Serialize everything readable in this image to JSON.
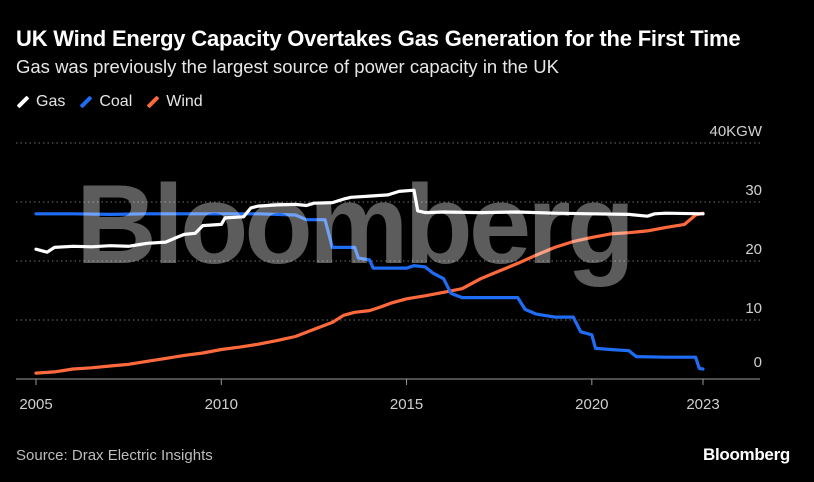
{
  "header": {
    "title": "UK Wind Energy Capacity Overtakes Gas Generation for the First Time",
    "subtitle": "Gas was previously the largest source of power capacity in the UK"
  },
  "footer": {
    "source": "Source: Drax Electric Insights",
    "brand": "Bloomberg"
  },
  "watermark": "Bloomberg",
  "chart_data": {
    "type": "line",
    "title": "UK Wind Energy Capacity Overtakes Gas Generation for the First Time",
    "subtitle": "Gas was previously the largest source of power capacity in the UK",
    "y_unit": "GW",
    "xlim": [
      2005,
      2023
    ],
    "ylim": [
      0,
      40
    ],
    "x_ticks": [
      {
        "value": 2005,
        "label": "2005"
      },
      {
        "value": 2010,
        "label": "2010"
      },
      {
        "value": 2015,
        "label": "2015"
      },
      {
        "value": 2020,
        "label": "2020"
      },
      {
        "value": 2023,
        "label": "2023"
      }
    ],
    "y_ticks": [
      {
        "value": 0,
        "label": "0"
      },
      {
        "value": 10,
        "label": "10"
      },
      {
        "value": 20,
        "label": "20"
      },
      {
        "value": 30,
        "label": "30"
      },
      {
        "value": 40,
        "label": "40KGW"
      }
    ],
    "grid": true,
    "legend_position": "top-left",
    "series": [
      {
        "name": "Gas",
        "color": "#ffffff",
        "points": [
          [
            2005.0,
            22.0
          ],
          [
            2005.3,
            21.5
          ],
          [
            2005.5,
            22.3
          ],
          [
            2006.0,
            22.5
          ],
          [
            2006.5,
            22.4
          ],
          [
            2007.0,
            22.6
          ],
          [
            2007.5,
            22.5
          ],
          [
            2007.8,
            22.8
          ],
          [
            2008.0,
            23.0
          ],
          [
            2008.5,
            23.2
          ],
          [
            2008.8,
            24.0
          ],
          [
            2009.0,
            24.5
          ],
          [
            2009.3,
            24.7
          ],
          [
            2009.5,
            26.0
          ],
          [
            2010.0,
            26.2
          ],
          [
            2010.1,
            27.3
          ],
          [
            2010.6,
            27.5
          ],
          [
            2010.8,
            29.0
          ],
          [
            2011.0,
            29.3
          ],
          [
            2011.5,
            29.5
          ],
          [
            2012.0,
            29.6
          ],
          [
            2012.3,
            29.4
          ],
          [
            2012.5,
            29.8
          ],
          [
            2013.0,
            29.9
          ],
          [
            2013.3,
            30.5
          ],
          [
            2013.5,
            30.8
          ],
          [
            2014.0,
            31.0
          ],
          [
            2014.5,
            31.2
          ],
          [
            2014.8,
            31.8
          ],
          [
            2015.2,
            32.0
          ],
          [
            2015.3,
            28.5
          ],
          [
            2015.5,
            28.2
          ],
          [
            2016.0,
            28.3
          ],
          [
            2017.0,
            28.2
          ],
          [
            2018.0,
            28.3
          ],
          [
            2019.0,
            28.1
          ],
          [
            2020.0,
            28.0
          ],
          [
            2021.0,
            27.9
          ],
          [
            2021.5,
            27.6
          ],
          [
            2021.7,
            28.0
          ],
          [
            2022.0,
            28.1
          ],
          [
            2023.0,
            28.0
          ]
        ]
      },
      {
        "name": "Coal",
        "color": "#1f6cf5",
        "points": [
          [
            2005.0,
            28.0
          ],
          [
            2006.0,
            28.0
          ],
          [
            2007.0,
            27.9
          ],
          [
            2008.0,
            28.0
          ],
          [
            2009.0,
            28.0
          ],
          [
            2010.0,
            28.0
          ],
          [
            2011.0,
            28.0
          ],
          [
            2012.0,
            27.8
          ],
          [
            2012.3,
            27.0
          ],
          [
            2012.8,
            27.0
          ],
          [
            2013.0,
            22.3
          ],
          [
            2013.6,
            22.3
          ],
          [
            2013.7,
            20.5
          ],
          [
            2014.0,
            20.2
          ],
          [
            2014.1,
            18.8
          ],
          [
            2015.0,
            18.8
          ],
          [
            2015.2,
            19.2
          ],
          [
            2015.5,
            19.0
          ],
          [
            2015.7,
            18.0
          ],
          [
            2016.0,
            17.0
          ],
          [
            2016.2,
            14.5
          ],
          [
            2016.5,
            13.8
          ],
          [
            2017.0,
            13.8
          ],
          [
            2018.0,
            13.8
          ],
          [
            2018.2,
            11.8
          ],
          [
            2018.5,
            11.0
          ],
          [
            2019.0,
            10.5
          ],
          [
            2019.5,
            10.5
          ],
          [
            2019.7,
            8.0
          ],
          [
            2020.0,
            7.5
          ],
          [
            2020.1,
            5.2
          ],
          [
            2020.5,
            5.0
          ],
          [
            2021.0,
            4.8
          ],
          [
            2021.2,
            3.8
          ],
          [
            2022.0,
            3.7
          ],
          [
            2022.8,
            3.7
          ],
          [
            2022.9,
            1.8
          ],
          [
            2023.0,
            1.7
          ]
        ]
      },
      {
        "name": "Wind",
        "color": "#ff6a3d",
        "points": [
          [
            2005.0,
            1.0
          ],
          [
            2005.5,
            1.2
          ],
          [
            2006.0,
            1.7
          ],
          [
            2006.5,
            1.9
          ],
          [
            2007.0,
            2.2
          ],
          [
            2007.5,
            2.5
          ],
          [
            2008.0,
            3.0
          ],
          [
            2008.5,
            3.5
          ],
          [
            2009.0,
            4.0
          ],
          [
            2009.5,
            4.4
          ],
          [
            2010.0,
            5.0
          ],
          [
            2010.5,
            5.4
          ],
          [
            2011.0,
            5.9
          ],
          [
            2011.5,
            6.5
          ],
          [
            2012.0,
            7.2
          ],
          [
            2012.5,
            8.4
          ],
          [
            2013.0,
            9.6
          ],
          [
            2013.3,
            10.8
          ],
          [
            2013.6,
            11.3
          ],
          [
            2014.0,
            11.6
          ],
          [
            2014.3,
            12.2
          ],
          [
            2014.6,
            12.9
          ],
          [
            2015.0,
            13.6
          ],
          [
            2015.5,
            14.1
          ],
          [
            2016.0,
            14.7
          ],
          [
            2016.5,
            15.3
          ],
          [
            2017.0,
            17.0
          ],
          [
            2017.5,
            18.3
          ],
          [
            2018.0,
            19.6
          ],
          [
            2018.5,
            21.0
          ],
          [
            2019.0,
            22.3
          ],
          [
            2019.5,
            23.3
          ],
          [
            2020.0,
            24.0
          ],
          [
            2020.5,
            24.6
          ],
          [
            2021.0,
            24.8
          ],
          [
            2021.5,
            25.1
          ],
          [
            2022.0,
            25.7
          ],
          [
            2022.5,
            26.2
          ],
          [
            2022.8,
            27.8
          ],
          [
            2023.0,
            28.1
          ]
        ]
      }
    ]
  }
}
